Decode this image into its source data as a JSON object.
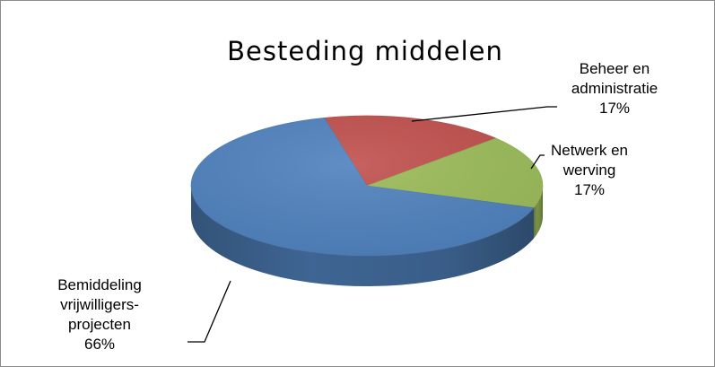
{
  "chart_data": {
    "type": "pie",
    "style": "3d",
    "title": "Besteding middelen",
    "slices": [
      {
        "category": "Bemiddeling vrijwilligers-projecten",
        "label_lines": [
          "Bemiddeling",
          "vrijwilligers-",
          "projecten",
          "66%"
        ],
        "value": 66,
        "color": "#4f81bd"
      },
      {
        "category": "Beheer en administratie",
        "label_lines": [
          "Beheer en",
          "administratie",
          "17%"
        ],
        "value": 17,
        "color": "#c0504d"
      },
      {
        "category": "Netwerk en werving",
        "label_lines": [
          "Netwerk en",
          "werving",
          "17%"
        ],
        "value": 17,
        "color": "#9bbb59"
      }
    ],
    "legend": "none",
    "data_labels": "outside-with-leader-lines"
  }
}
